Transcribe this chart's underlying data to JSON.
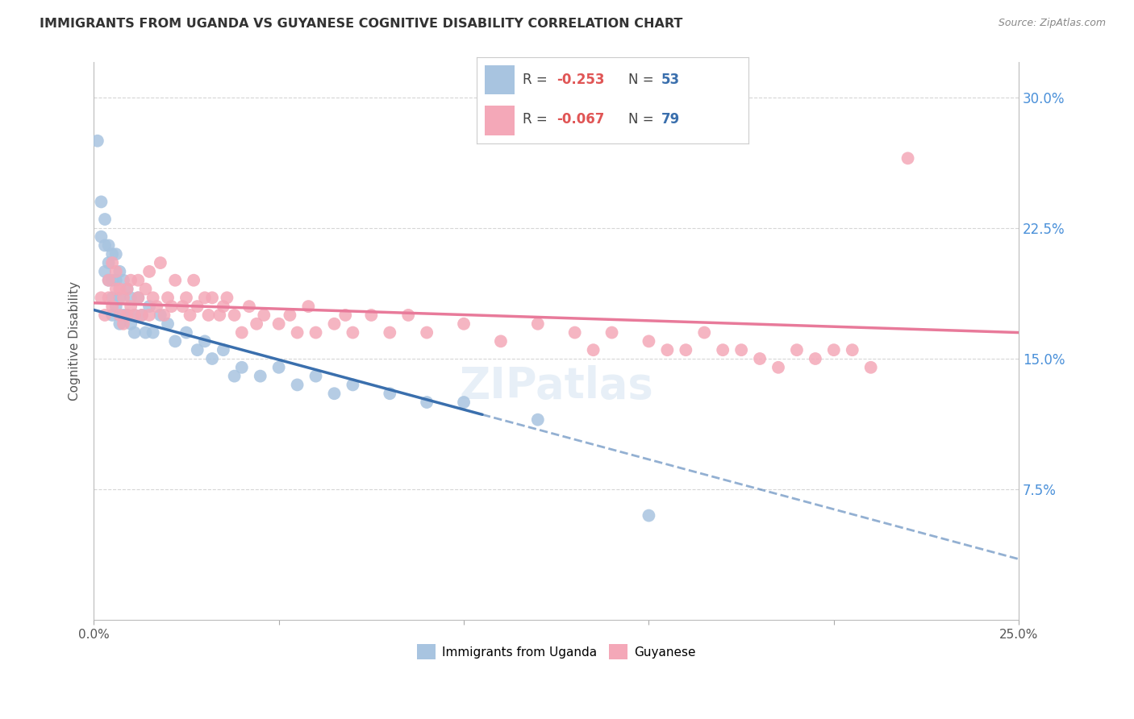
{
  "title": "IMMIGRANTS FROM UGANDA VS GUYANESE COGNITIVE DISABILITY CORRELATION CHART",
  "source": "Source: ZipAtlas.com",
  "ylabel": "Cognitive Disability",
  "x_min": 0.0,
  "x_max": 0.25,
  "y_min": 0.0,
  "y_max": 0.32,
  "y_ticks": [
    0.075,
    0.15,
    0.225,
    0.3
  ],
  "y_tick_labels": [
    "7.5%",
    "15.0%",
    "22.5%",
    "30.0%"
  ],
  "x_ticks": [
    0.0,
    0.05,
    0.1,
    0.15,
    0.2,
    0.25
  ],
  "x_tick_labels": [
    "0.0%",
    "",
    "",
    "",
    "",
    "25.0%"
  ],
  "bg_color": "#ffffff",
  "grid_color": "#cccccc",
  "legend1_color": "#a8c4e0",
  "legend2_color": "#f4a8b8",
  "line1_color": "#3a6fad",
  "line2_color": "#e87a9a",
  "series1_name": "Immigrants from Uganda",
  "series2_name": "Guyanese",
  "title_color": "#333333",
  "source_color": "#888888",
  "label_color": "#555555",
  "right_axis_color": "#4a90d9",
  "legend_R_color": "#e05555",
  "legend_N_color": "#3a6fad",
  "uganda_x": [
    0.001,
    0.002,
    0.002,
    0.003,
    0.003,
    0.003,
    0.004,
    0.004,
    0.004,
    0.005,
    0.005,
    0.005,
    0.005,
    0.006,
    0.006,
    0.006,
    0.007,
    0.007,
    0.007,
    0.008,
    0.008,
    0.009,
    0.009,
    0.01,
    0.01,
    0.011,
    0.011,
    0.012,
    0.013,
    0.014,
    0.015,
    0.016,
    0.018,
    0.02,
    0.022,
    0.025,
    0.028,
    0.03,
    0.032,
    0.035,
    0.038,
    0.04,
    0.045,
    0.05,
    0.055,
    0.06,
    0.065,
    0.07,
    0.08,
    0.09,
    0.1,
    0.12,
    0.15
  ],
  "uganda_y": [
    0.275,
    0.24,
    0.22,
    0.23,
    0.215,
    0.2,
    0.215,
    0.205,
    0.195,
    0.21,
    0.195,
    0.185,
    0.175,
    0.21,
    0.195,
    0.18,
    0.2,
    0.185,
    0.17,
    0.195,
    0.175,
    0.19,
    0.175,
    0.185,
    0.17,
    0.175,
    0.165,
    0.185,
    0.175,
    0.165,
    0.18,
    0.165,
    0.175,
    0.17,
    0.16,
    0.165,
    0.155,
    0.16,
    0.15,
    0.155,
    0.14,
    0.145,
    0.14,
    0.145,
    0.135,
    0.14,
    0.13,
    0.135,
    0.13,
    0.125,
    0.125,
    0.115,
    0.06
  ],
  "guyanese_x": [
    0.002,
    0.003,
    0.004,
    0.004,
    0.005,
    0.005,
    0.006,
    0.006,
    0.007,
    0.007,
    0.008,
    0.008,
    0.009,
    0.009,
    0.01,
    0.01,
    0.011,
    0.012,
    0.012,
    0.013,
    0.014,
    0.015,
    0.015,
    0.016,
    0.017,
    0.018,
    0.019,
    0.02,
    0.021,
    0.022,
    0.024,
    0.025,
    0.026,
    0.027,
    0.028,
    0.03,
    0.031,
    0.032,
    0.034,
    0.035,
    0.036,
    0.038,
    0.04,
    0.042,
    0.044,
    0.046,
    0.05,
    0.053,
    0.055,
    0.058,
    0.06,
    0.065,
    0.068,
    0.07,
    0.075,
    0.08,
    0.085,
    0.09,
    0.1,
    0.11,
    0.12,
    0.13,
    0.135,
    0.14,
    0.15,
    0.16,
    0.165,
    0.17,
    0.18,
    0.19,
    0.2,
    0.21,
    0.155,
    0.175,
    0.185,
    0.195,
    0.205,
    0.22
  ],
  "guyanese_y": [
    0.185,
    0.175,
    0.185,
    0.195,
    0.18,
    0.205,
    0.19,
    0.2,
    0.175,
    0.19,
    0.17,
    0.185,
    0.175,
    0.19,
    0.18,
    0.195,
    0.175,
    0.195,
    0.185,
    0.175,
    0.19,
    0.175,
    0.2,
    0.185,
    0.18,
    0.205,
    0.175,
    0.185,
    0.18,
    0.195,
    0.18,
    0.185,
    0.175,
    0.195,
    0.18,
    0.185,
    0.175,
    0.185,
    0.175,
    0.18,
    0.185,
    0.175,
    0.165,
    0.18,
    0.17,
    0.175,
    0.17,
    0.175,
    0.165,
    0.18,
    0.165,
    0.17,
    0.175,
    0.165,
    0.175,
    0.165,
    0.175,
    0.165,
    0.17,
    0.16,
    0.17,
    0.165,
    0.155,
    0.165,
    0.16,
    0.155,
    0.165,
    0.155,
    0.15,
    0.155,
    0.155,
    0.145,
    0.155,
    0.155,
    0.145,
    0.15,
    0.155,
    0.265
  ],
  "line1_x0": 0.0,
  "line1_y0": 0.178,
  "line1_x1": 0.25,
  "line1_y1": 0.035,
  "line1_solid_end": 0.105,
  "line2_x0": 0.0,
  "line2_y0": 0.182,
  "line2_x1": 0.25,
  "line2_y1": 0.165
}
